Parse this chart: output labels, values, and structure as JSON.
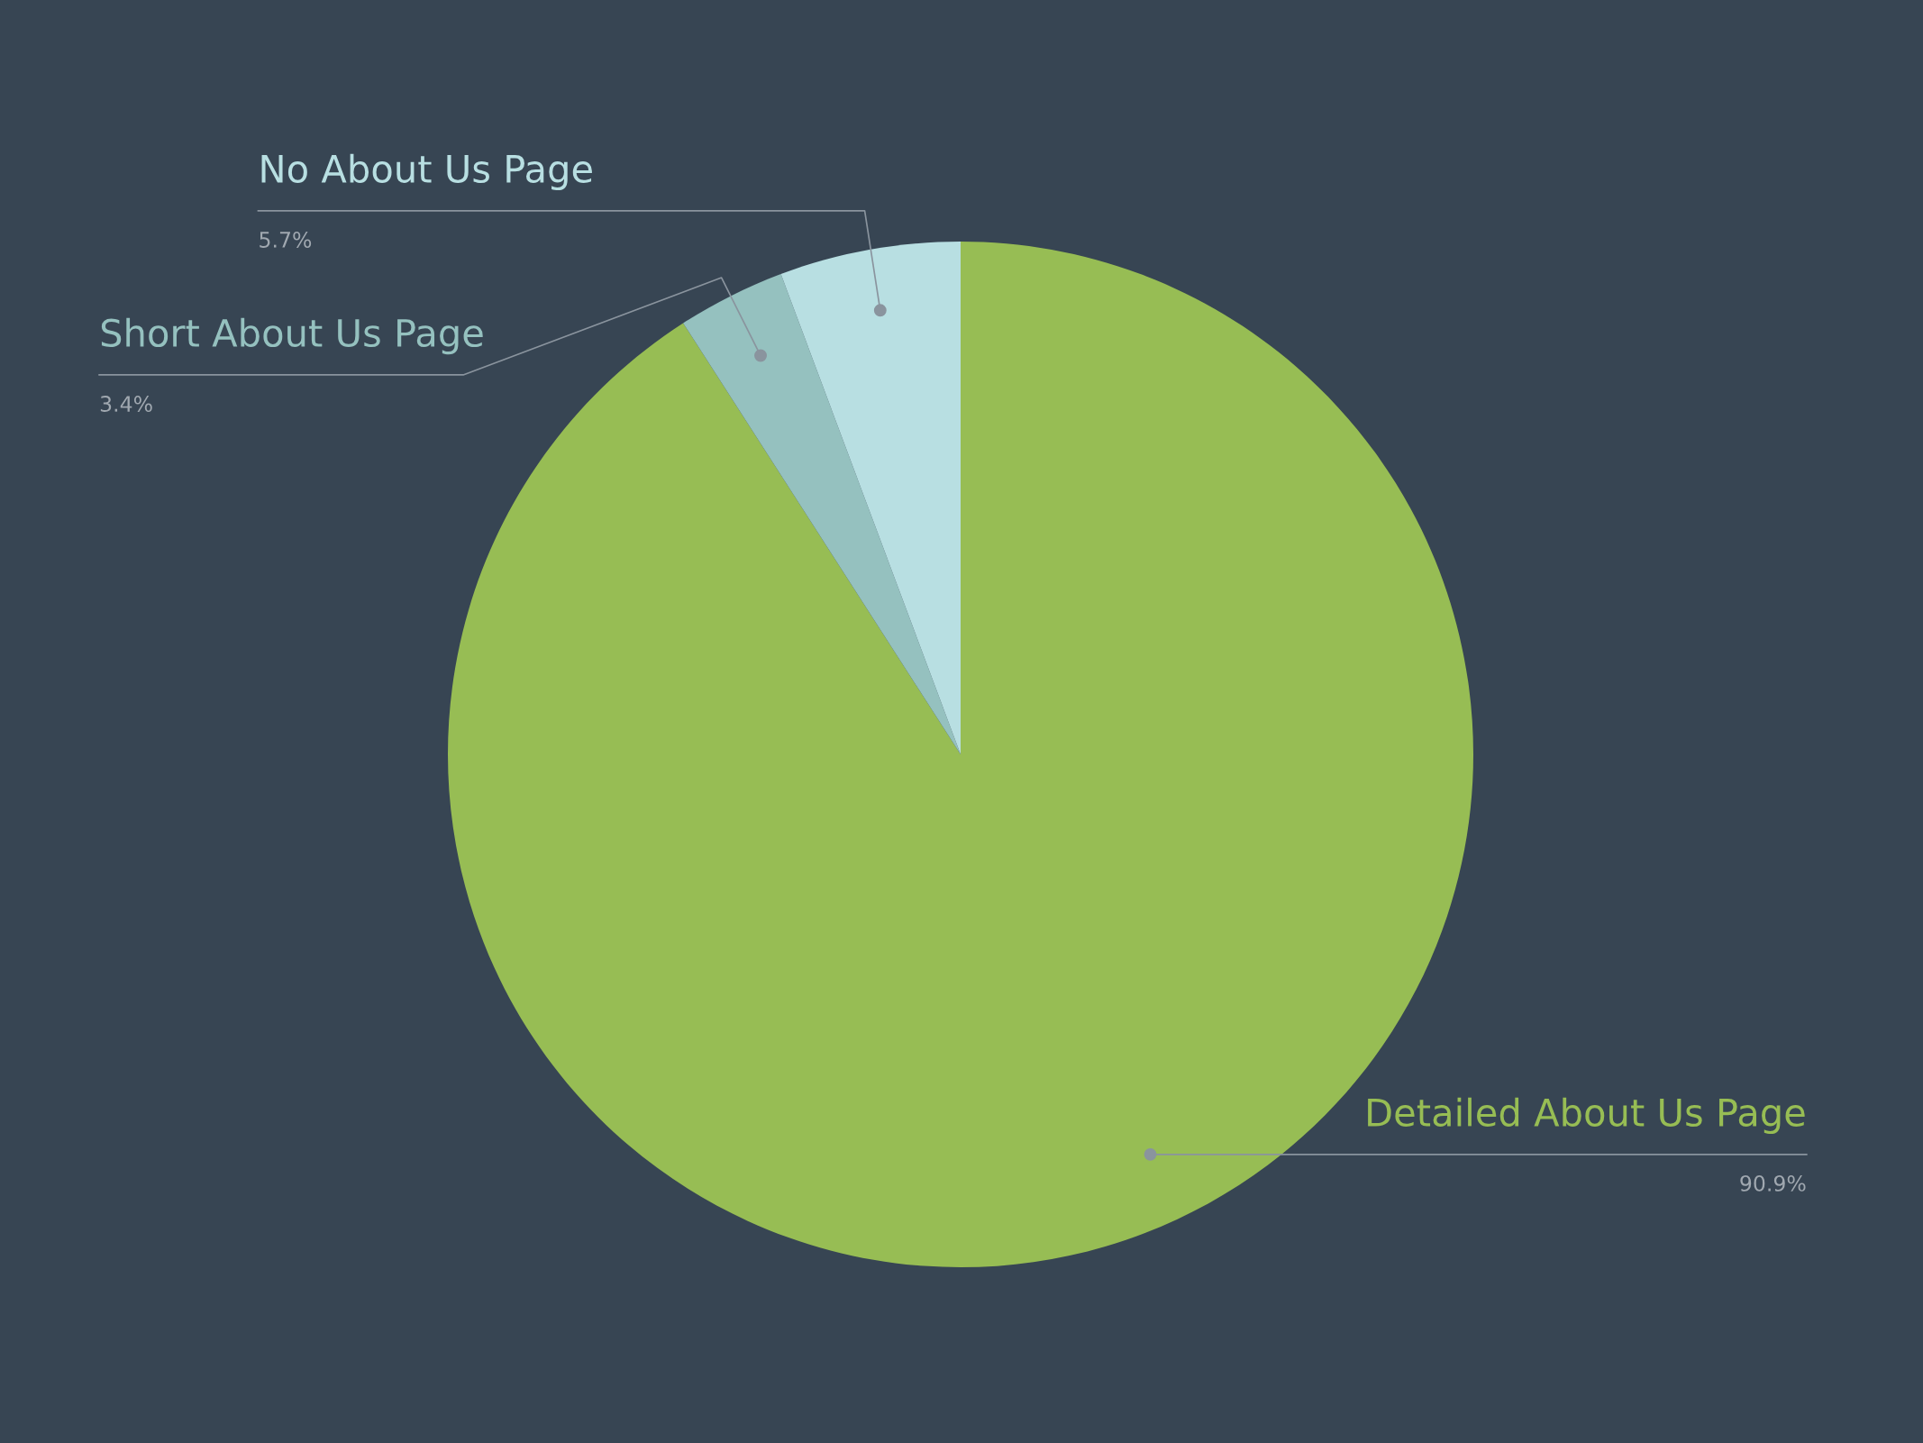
{
  "chart_data": {
    "type": "pie",
    "categories": [
      "Detailed About Us Page",
      "Short About Us Page",
      "No About Us Page"
    ],
    "values": [
      90.9,
      3.4,
      5.7
    ],
    "value_labels": [
      "90.9%",
      "3.4%",
      "5.7%"
    ],
    "colors": [
      "#97bd54",
      "#95c1bf",
      "#b8dfe2"
    ],
    "legend": false
  }
}
